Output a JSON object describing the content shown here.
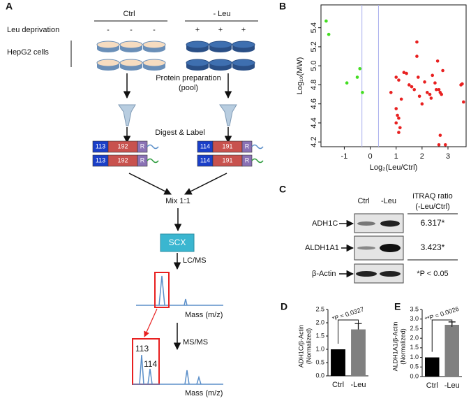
{
  "panels": [
    "A",
    "B",
    "C",
    "D",
    "E"
  ],
  "workflow": {
    "groups": [
      "Ctrl",
      "- Leu"
    ],
    "deprivation": {
      "label": "Leu deprivation",
      "ctrl": "-",
      "leu": "+"
    },
    "cells": "HepG2 cells",
    "preparation": [
      "Protein preparation",
      "(pool)"
    ],
    "digest": "Digest & Label",
    "tags": {
      "ctrl": [
        "113",
        "192",
        "R"
      ],
      "leu": [
        "114",
        "191",
        "R"
      ]
    },
    "mix": "Mix 1:1",
    "scx": "SCX",
    "lcms": "LC/MS",
    "msms": "MS/MS",
    "mass_axis": "Mass (m/z)",
    "reporters": [
      "113",
      "114"
    ]
  },
  "blot": {
    "columns": [
      "Ctrl",
      "-Leu"
    ],
    "ratio_header": [
      "iTRAQ ratio",
      "(-Leu/Ctrl)"
    ],
    "rows": [
      {
        "protein": "ADH1C",
        "ratio": "6.317*"
      },
      {
        "protein": "ALDH1A1",
        "ratio": "3.423*"
      },
      {
        "protein": "β-Actin"
      }
    ],
    "footnote": "*P < 0.05"
  },
  "chart_data": [
    {
      "type": "scatter",
      "xlabel": "Log₂(Leu/Ctrl)",
      "ylabel": "Log₁₀(MW)",
      "xlim": [
        -1.9,
        3.7
      ],
      "ylim": [
        4.15,
        5.64
      ],
      "xticks": [
        -1,
        0,
        1,
        2,
        3
      ],
      "yticks": [
        {
          "value": 4.2,
          "label": "4.2"
        },
        {
          "value": 4.4,
          "label": "4.4"
        },
        {
          "value": 4.6,
          "label": "4.6"
        },
        {
          "value": 4.8,
          "label": "4.8"
        },
        {
          "value": 5,
          "label": "5.0"
        },
        {
          "value": 5.2,
          "label": "5.2"
        },
        {
          "value": 5.4,
          "label": "5.4"
        }
      ],
      "vlines": [
        -0.32,
        0.32
      ],
      "series": [
        {
          "color": "#44dd22",
          "x": [
            -1.7,
            -1.6,
            -0.4,
            -0.5,
            -0.9,
            -0.3
          ],
          "values": [
            5.47,
            5.33,
            4.97,
            4.88,
            4.82,
            4.72
          ]
        },
        {
          "color": "#e82020",
          "x": [
            0.8,
            1.0,
            1.1,
            1.0,
            1.05,
            1.1,
            1.0,
            1.1,
            1.2,
            1.3,
            1.4,
            1.5,
            1.6,
            1.7,
            1.8,
            1.8,
            1.85,
            1.9,
            2.0,
            2.1,
            2.2,
            2.3,
            2.35,
            2.4,
            2.5,
            2.55,
            2.6,
            2.65,
            2.7,
            2.75,
            2.8,
            2.7,
            2.65,
            2.9,
            3.5,
            3.55,
            3.6,
            1.15
          ],
          "values": [
            4.72,
            4.88,
            4.85,
            4.55,
            4.48,
            4.45,
            4.4,
            4.3,
            4.65,
            4.93,
            4.92,
            4.8,
            4.78,
            4.75,
            5.25,
            5.1,
            4.88,
            4.68,
            4.6,
            4.83,
            4.72,
            4.7,
            4.66,
            4.9,
            4.82,
            4.75,
            5.05,
            4.75,
            4.72,
            4.7,
            4.95,
            4.27,
            4.17,
            4.17,
            4.8,
            4.81,
            4.62,
            4.35
          ]
        }
      ]
    },
    {
      "type": "bar",
      "ylabel": [
        "ADH1C/β-Actin",
        "(Normalized)"
      ],
      "annotation": "*P = 0.0327",
      "categories": [
        "Ctrl",
        "-Leu"
      ],
      "values": [
        1.0,
        1.75
      ],
      "errors": [
        null,
        0.22
      ],
      "colors": [
        "#000000",
        "#808080"
      ],
      "ylim": [
        0,
        2.5
      ],
      "yticks": [
        {
          "value": 0,
          "label": "0.0"
        },
        0.5,
        {
          "value": 1,
          "label": "1.0"
        },
        1.5,
        {
          "value": 2,
          "label": "2.0"
        },
        2.5
      ]
    },
    {
      "type": "bar",
      "ylabel": [
        "ALDH1A1/β-Actin",
        "(Normalized)"
      ],
      "annotation": "**P = 0.0026",
      "categories": [
        "Ctrl",
        "-Leu"
      ],
      "values": [
        1.0,
        2.7
      ],
      "errors": [
        null,
        0.15
      ],
      "colors": [
        "#000000",
        "#808080"
      ],
      "ylim": [
        0,
        3.5
      ],
      "yticks": [
        {
          "value": 0,
          "label": "0.0"
        },
        0.5,
        {
          "value": 1,
          "label": "1.0"
        },
        1.5,
        {
          "value": 2,
          "label": "2.0"
        },
        2.5,
        {
          "value": 3,
          "label": "3.0"
        },
        3.5
      ]
    }
  ]
}
